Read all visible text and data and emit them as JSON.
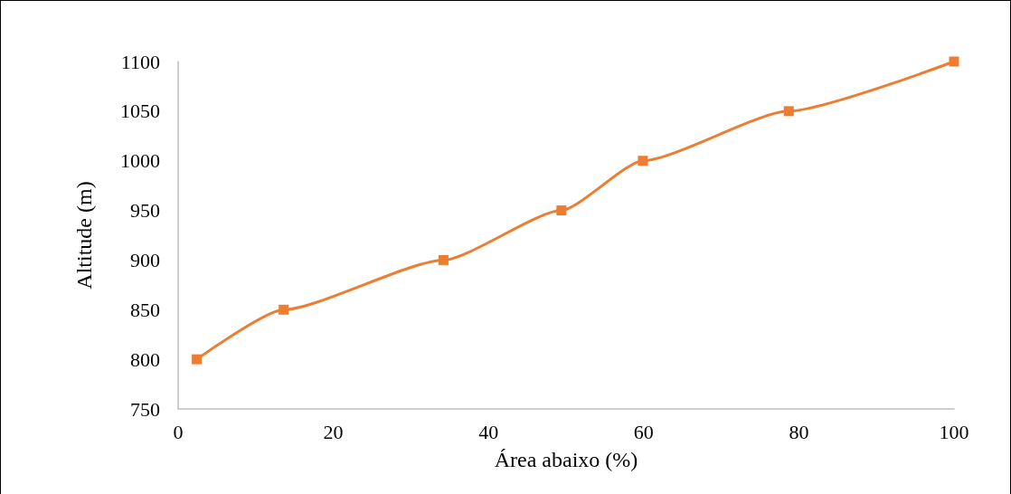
{
  "chart_data": {
    "type": "line",
    "xlabel": "Área abaixo (%)",
    "ylabel": "Altitude (m)",
    "x": [
      2.4,
      13.6,
      34.2,
      49.4,
      59.9,
      78.7,
      100
    ],
    "series": [
      {
        "color": "#ed7d31",
        "values": [
          800,
          850,
          900,
          950,
          1000,
          1050,
          1100
        ]
      }
    ],
    "xlim": [
      0,
      100
    ],
    "xticks": [
      0,
      20,
      40,
      60,
      80,
      100
    ],
    "ylim": [
      750,
      1100
    ],
    "yticks": [
      750,
      800,
      850,
      900,
      950,
      1000,
      1050,
      1100
    ],
    "grid": false,
    "marker": "square",
    "line_style": "solid"
  }
}
